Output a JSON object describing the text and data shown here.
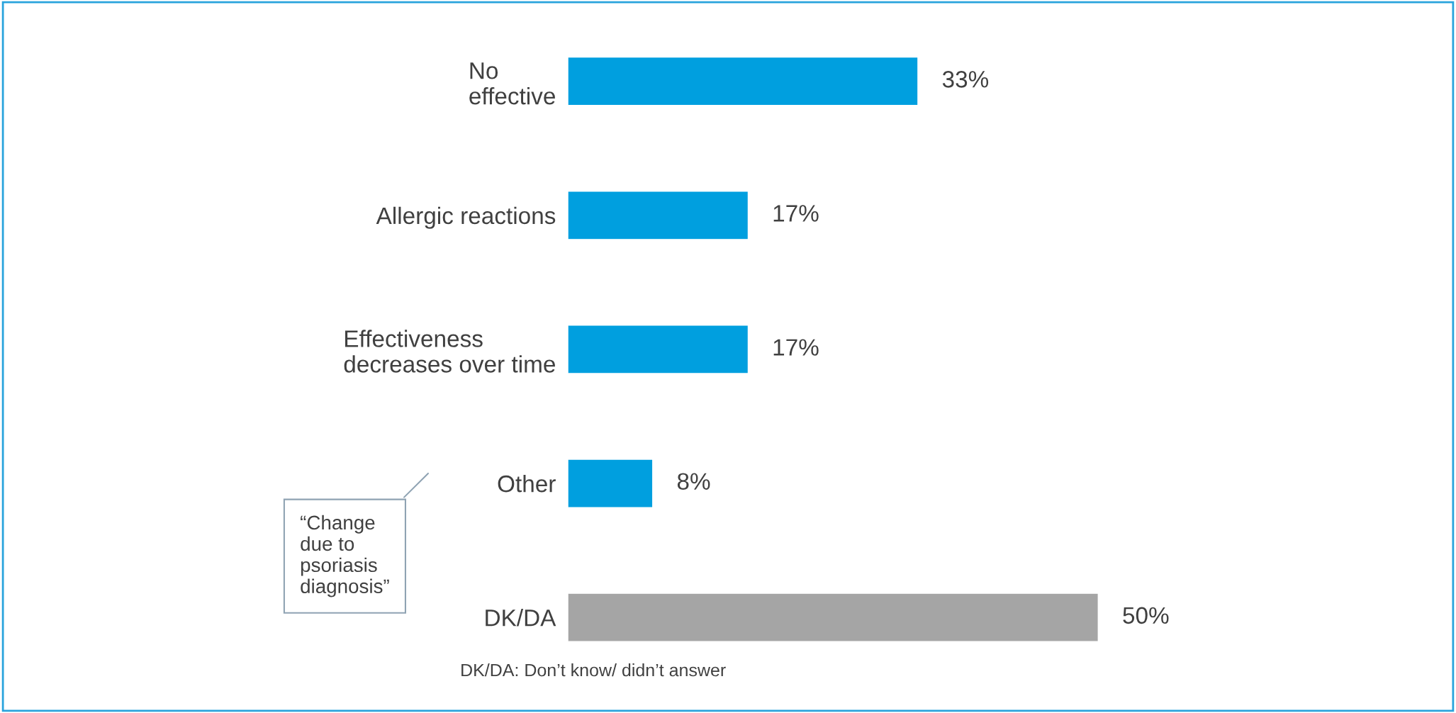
{
  "chart_data": {
    "type": "bar",
    "orientation": "horizontal",
    "categories": [
      "No\neffective",
      "Allergic reactions",
      "Effectiveness\ndecreases over time",
      "Other",
      "DK/DA"
    ],
    "values": [
      33,
      17,
      17,
      8,
      50
    ],
    "colors": [
      "#009fdf",
      "#009fdf",
      "#009fdf",
      "#009fdf",
      "#a5a5a5"
    ],
    "value_labels": [
      "33%",
      "17%",
      "17%",
      "8%",
      "50%"
    ],
    "annotations": [
      "“Change\ndue to\npsoriasis\ndiagnosis”",
      "DK/DA: Don’t know/ didn’t answer"
    ],
    "grid": false,
    "legend": false
  }
}
